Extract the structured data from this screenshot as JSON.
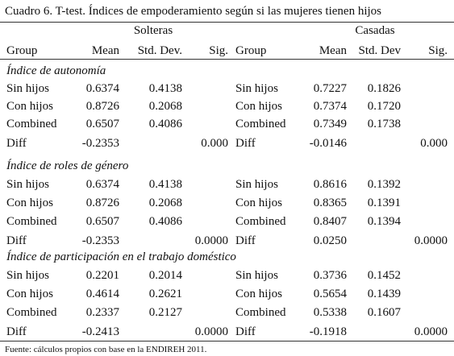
{
  "header": {
    "title": "Cuadro 6. T-test. Índices de empoderamiento según si las mujeres tienen hijos",
    "groups": [
      "Solteras",
      "Casadas"
    ],
    "columns": [
      [
        "Group",
        "Mean",
        "Std. Dev.",
        "Sig."
      ],
      [
        "Group",
        "Mean",
        "Std. Dev",
        "Sig."
      ]
    ]
  },
  "sections": [
    {
      "title": "Índice de autonomía",
      "rows": [
        {
          "left": {
            "group": "Sin hijos",
            "mean": "0.6374",
            "sd": "0.4138"
          },
          "right": {
            "group": "Sin hijos",
            "mean": "0.7227",
            "sd": "0.1826"
          }
        },
        {
          "left": {
            "group": "Con hijos",
            "mean": "0.8726",
            "sd": "0.2068"
          },
          "right": {
            "group": "Con hijos",
            "mean": "0.7374",
            "sd": "0.1720"
          }
        },
        {
          "left": {
            "group": "Combined",
            "mean": "0.6507",
            "sd": "0.4086"
          },
          "right": {
            "group": "Combined",
            "mean": "0.7349",
            "sd": "0.1738"
          }
        }
      ],
      "diff": {
        "left": {
          "group": "Diff",
          "mean": "-0.2353",
          "sig": "0.000"
        },
        "right": {
          "group": "Diff",
          "mean": "-0.0146",
          "sig": "0.000"
        }
      }
    },
    {
      "title": "Índice de roles de género",
      "rows": [
        {
          "left": {
            "group": "Sin hijos",
            "mean": "0.6374",
            "sd": "0.4138"
          },
          "right": {
            "group": "Sin hijos",
            "mean": "0.8616",
            "sd": "0.1392"
          }
        },
        {
          "left": {
            "group": "Con hijos",
            "mean": "0.8726",
            "sd": "0.2068"
          },
          "right": {
            "group": "Con hijos",
            "mean": "0.8365",
            "sd": "0.1391"
          }
        },
        {
          "left": {
            "group": "Combined",
            "mean": "0.6507",
            "sd": "0.4086"
          },
          "right": {
            "group": "Combined",
            "mean": "0.8407",
            "sd": "0.1394"
          }
        }
      ],
      "diff": {
        "left": {
          "group": "Diff",
          "mean": "-0.2353",
          "sig": "0.0000"
        },
        "right": {
          "group": "Diff",
          "mean": "0.0250",
          "sig": "0.0000"
        }
      }
    },
    {
      "title": "Índice de participación en el trabajo doméstico",
      "rows": [
        {
          "left": {
            "group": "Sin hijos",
            "mean": "0.2201",
            "sd": "0.2014"
          },
          "right": {
            "group": "Sin hijos",
            "mean": "0.3736",
            "sd": "0.1452"
          }
        },
        {
          "left": {
            "group": "Con hijos",
            "mean": "0.4614",
            "sd": "0.2621"
          },
          "right": {
            "group": "Con hijos",
            "mean": "0.5654",
            "sd": "0.1439"
          }
        },
        {
          "left": {
            "group": "Combined",
            "mean": "0.2337",
            "sd": "0.2127"
          },
          "right": {
            "group": "Combined",
            "mean": "0.5338",
            "sd": "0.1607"
          }
        }
      ],
      "diff": {
        "left": {
          "group": "Diff",
          "mean": "-0.2413",
          "sig": "0.0000"
        },
        "right": {
          "group": "Diff",
          "mean": "-0.1918",
          "sig": "0.0000"
        }
      }
    }
  ],
  "footnote": "Fuente: cálculos propios con base en la ENDIREH 2011."
}
